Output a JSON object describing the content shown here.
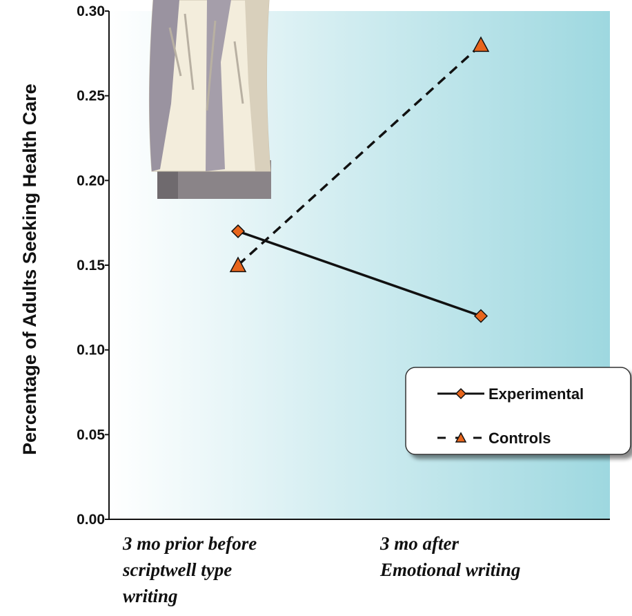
{
  "chart_data": {
    "type": "line",
    "title": "",
    "ylabel": "Percentage of Adults Seeking Health Care",
    "xlabel": "",
    "categories": [
      [
        "3 mo prior before",
        "scriptwell type",
        "writing"
      ],
      [
        "3 mo after",
        "Emotional writing"
      ]
    ],
    "yticks": [
      "0.00",
      "0.05",
      "0.10",
      "0.15",
      "0.20",
      "0.25",
      "0.30"
    ],
    "ylim": [
      0,
      0.3
    ],
    "grid": false,
    "legend": "bottom-right",
    "series": [
      {
        "name": "Experimental",
        "values": [
          0.17,
          0.12
        ],
        "marker": "diamond",
        "dash": "solid",
        "color": "#e8651c"
      },
      {
        "name": "Controls",
        "values": [
          0.15,
          0.28
        ],
        "marker": "triangle",
        "dash": "dashed",
        "color": "#e8651c"
      }
    ],
    "background": {
      "from": "#ffffff",
      "to": "#9ed8e0"
    },
    "decoration": "person-in-coat-illustration"
  }
}
